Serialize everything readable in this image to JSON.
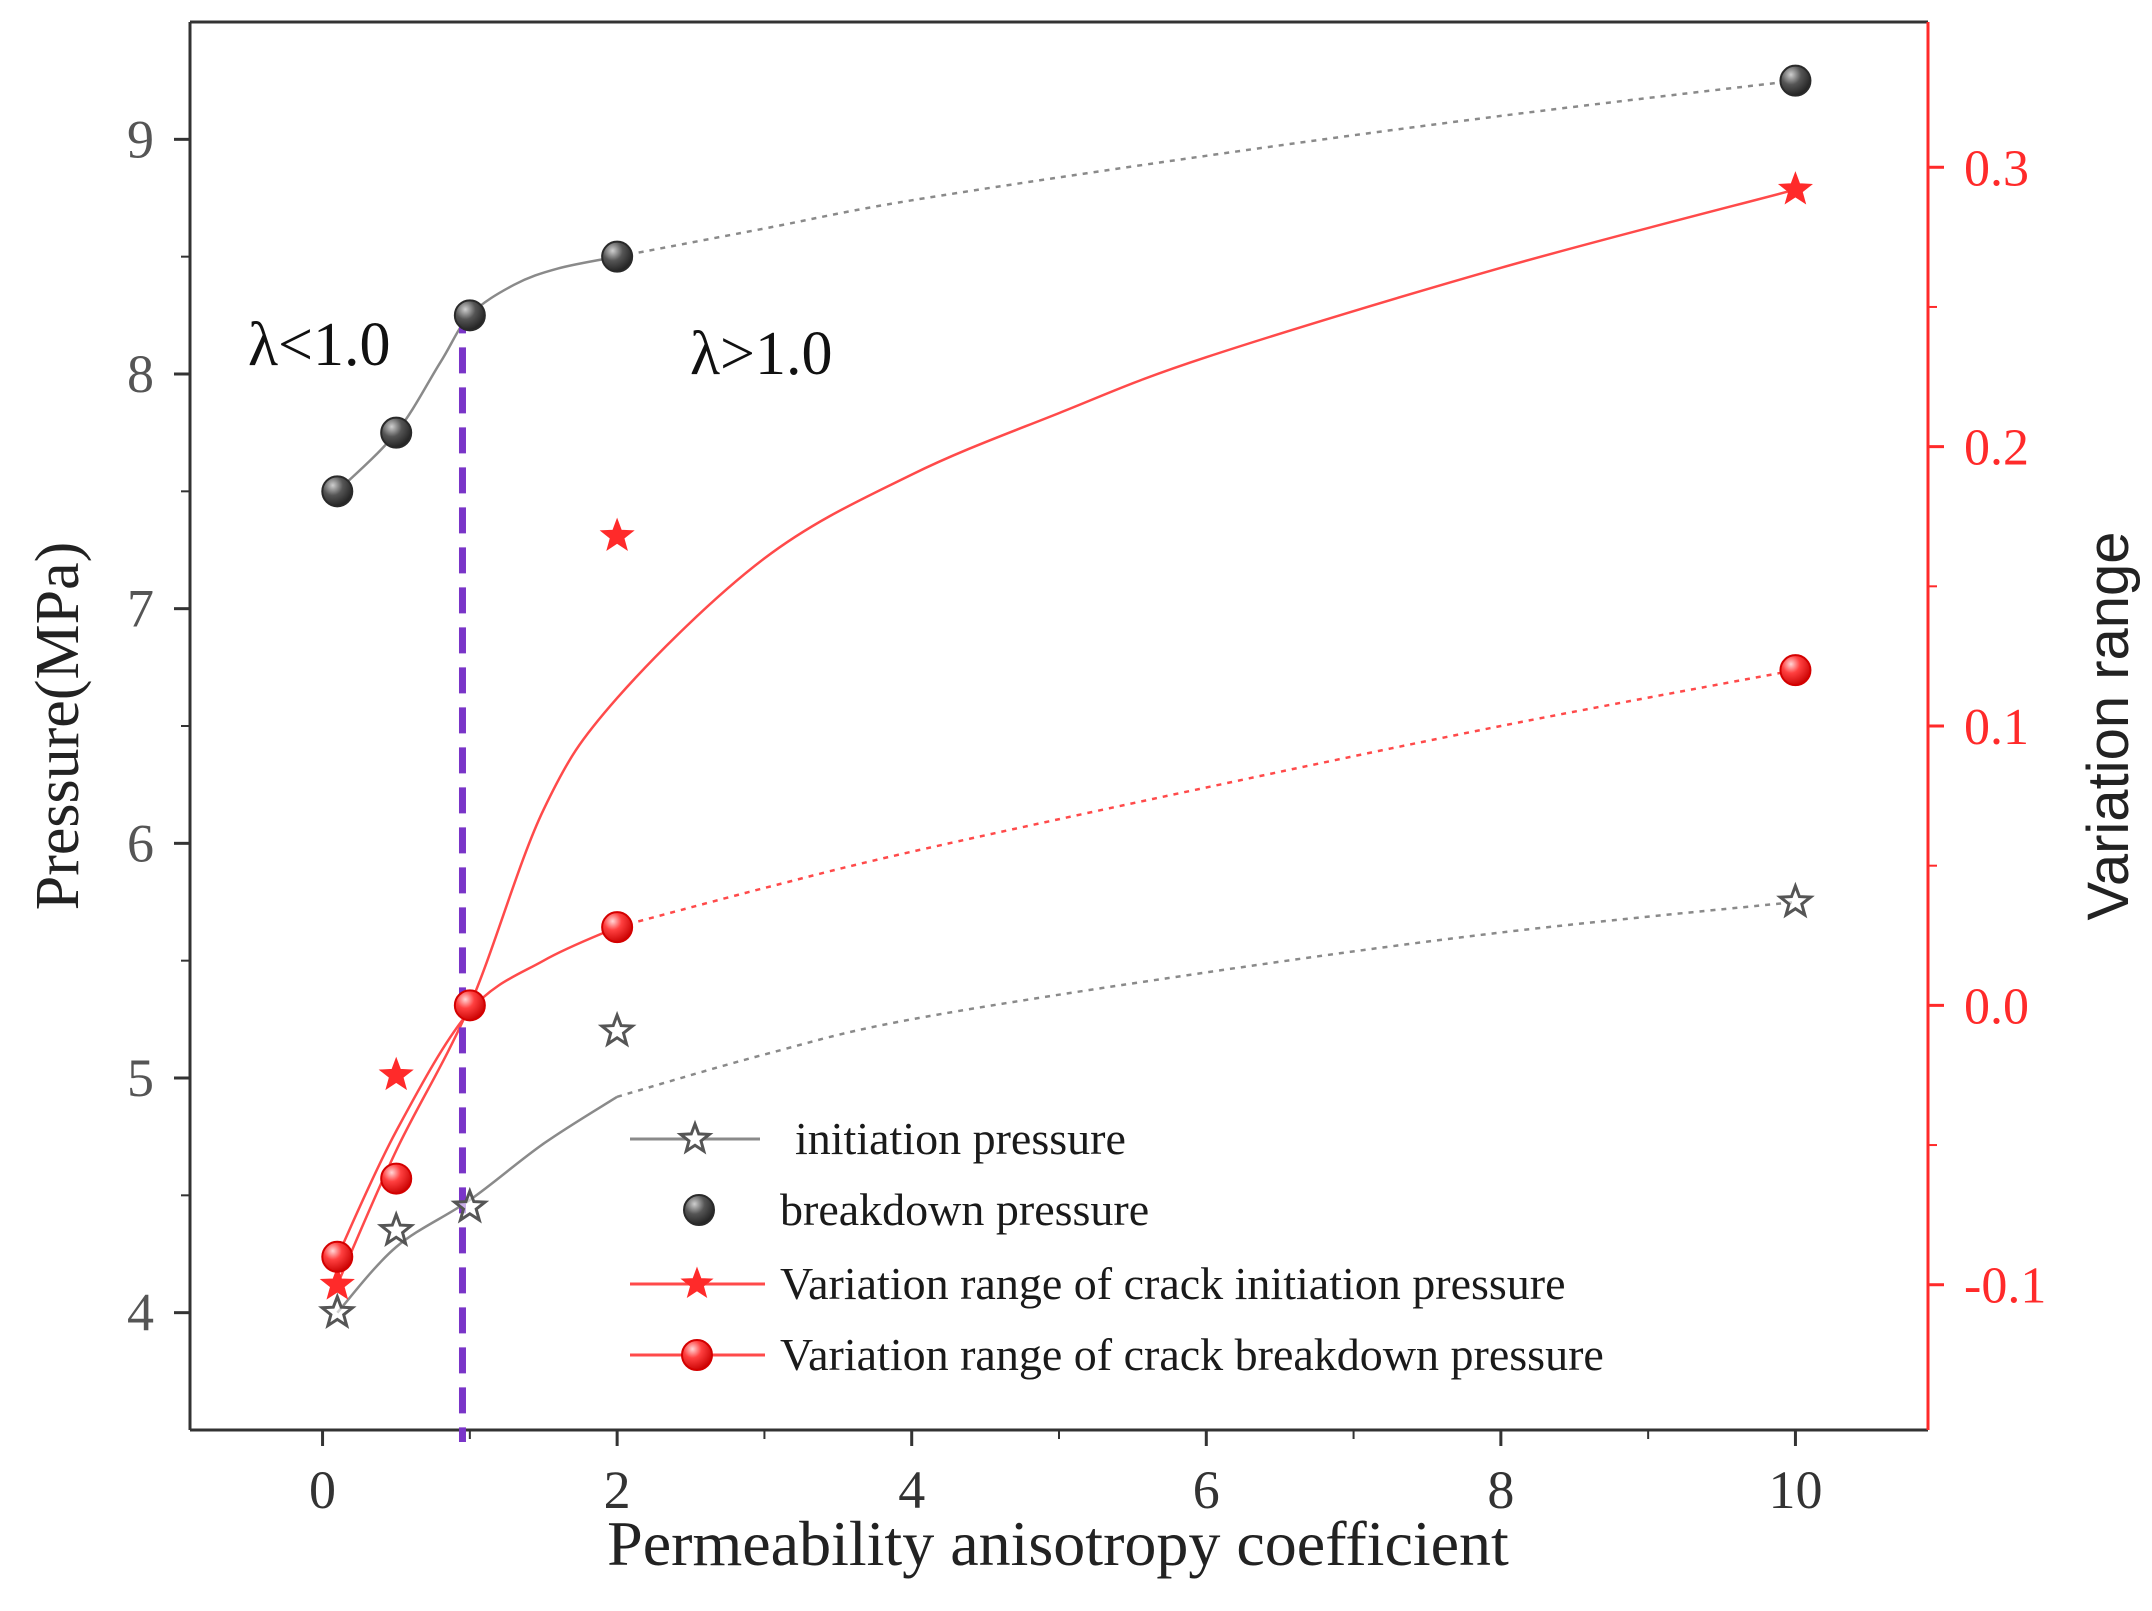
{
  "colors": {
    "left_axis": "#333333",
    "right_axis": "#ff2a2a",
    "gray_series": "#8a8a8a",
    "red_series": "#ff4a4a",
    "divider": "#7a35c8",
    "marker_gray": "#3e3e3e",
    "marker_red": "#ff2a2a"
  },
  "annotations": {
    "left_region": "λ<1.0",
    "right_region": "λ>1.0"
  },
  "chart_data": {
    "type": "scatter",
    "title": "",
    "xlabel": "Permeability anisotropy coefficient",
    "ylabel_left": "Pressure(MPa)",
    "ylabel_right": "Variation range",
    "x_range": [
      -0.9,
      10.9
    ],
    "y_left_range": [
      3.5,
      9.5
    ],
    "y_right_range": [
      -0.152,
      0.352
    ],
    "x_ticks": [
      0,
      2,
      4,
      6,
      8,
      10
    ],
    "x_tick_labels": [
      "0",
      "2",
      "4",
      "6",
      "8",
      "10"
    ],
    "x_minor_ticks": [
      1,
      3,
      5,
      7,
      9
    ],
    "y_left_ticks": [
      4,
      5,
      6,
      7,
      8,
      9
    ],
    "y_left_tick_labels": [
      "4",
      "5",
      "6",
      "7",
      "8",
      "9"
    ],
    "y_right_ticks": [
      -0.1,
      0.0,
      0.1,
      0.2,
      0.3
    ],
    "y_right_tick_labels": [
      "-0.1",
      "0.0",
      "0.1",
      "0.2",
      "0.3"
    ],
    "y_right_minor_ticks": [
      -0.05,
      0.05,
      0.15,
      0.25
    ],
    "divider_x": 0.95,
    "legend_position": "bottom-right",
    "legend_entries": [
      "initiation pressure",
      "breakdown pressure",
      "Variation range of crack initiation pressure",
      "Variation range of crack breakdown pressure"
    ],
    "series": [
      {
        "name": "initiation pressure",
        "axis": "left",
        "marker": "star-open",
        "x": [
          0.1,
          0.5,
          1,
          2,
          10
        ],
        "y": [
          4.0,
          4.35,
          4.45,
          5.2,
          5.75
        ]
      },
      {
        "name": "breakdown pressure",
        "axis": "left",
        "marker": "circle",
        "x": [
          0.1,
          0.5,
          1,
          2,
          10
        ],
        "y": [
          7.5,
          7.75,
          8.25,
          8.5,
          9.25
        ]
      },
      {
        "name": "Variation range of crack initiation pressure",
        "axis": "right",
        "marker": "star-filled",
        "x": [
          0.1,
          0.5,
          2,
          10
        ],
        "y": [
          -0.1,
          -0.025,
          0.168,
          0.292
        ]
      },
      {
        "name": "Variation range of crack breakdown pressure",
        "axis": "right",
        "marker": "circle-red",
        "x": [
          0.1,
          0.5,
          1,
          2,
          10
        ],
        "y": [
          -0.09,
          -0.062,
          0.0,
          0.028,
          0.12
        ]
      }
    ],
    "fit_curves": [
      {
        "name": "initiation pressure fit",
        "axis": "left",
        "style": "solid-then-dotted",
        "switch_x": 2.0,
        "x": [
          0.1,
          0.5,
          1,
          1.5,
          2,
          3,
          4,
          6,
          8,
          10
        ],
        "y": [
          4.0,
          4.28,
          4.48,
          4.72,
          4.92,
          5.1,
          5.25,
          5.45,
          5.62,
          5.75
        ]
      },
      {
        "name": "breakdown pressure fit",
        "axis": "left",
        "style": "solid-then-dotted",
        "switch_x": 2.0,
        "x": [
          0.1,
          0.5,
          0.8,
          1,
          1.3,
          1.6,
          2,
          3,
          4,
          6,
          8,
          10
        ],
        "y": [
          7.5,
          7.75,
          8.05,
          8.25,
          8.38,
          8.45,
          8.5,
          8.62,
          8.74,
          8.93,
          9.1,
          9.25
        ]
      },
      {
        "name": "Variation range of crack initiation pressure fit",
        "axis": "right",
        "style": "solid",
        "switch_x": 10,
        "x": [
          0.1,
          0.5,
          1,
          1.5,
          2,
          3,
          4,
          5,
          6,
          8,
          10
        ],
        "y": [
          -0.1,
          -0.052,
          0.0,
          0.07,
          0.11,
          0.16,
          0.19,
          0.212,
          0.232,
          0.264,
          0.292
        ]
      },
      {
        "name": "Variation range of crack breakdown pressure fit",
        "axis": "right",
        "style": "solid-then-dotted",
        "switch_x": 2.0,
        "x": [
          0.1,
          0.5,
          1,
          1.5,
          2,
          3,
          4,
          6,
          8,
          10
        ],
        "y": [
          -0.09,
          -0.045,
          -0.002,
          0.016,
          0.028,
          0.042,
          0.055,
          0.078,
          0.1,
          0.12
        ]
      }
    ]
  }
}
